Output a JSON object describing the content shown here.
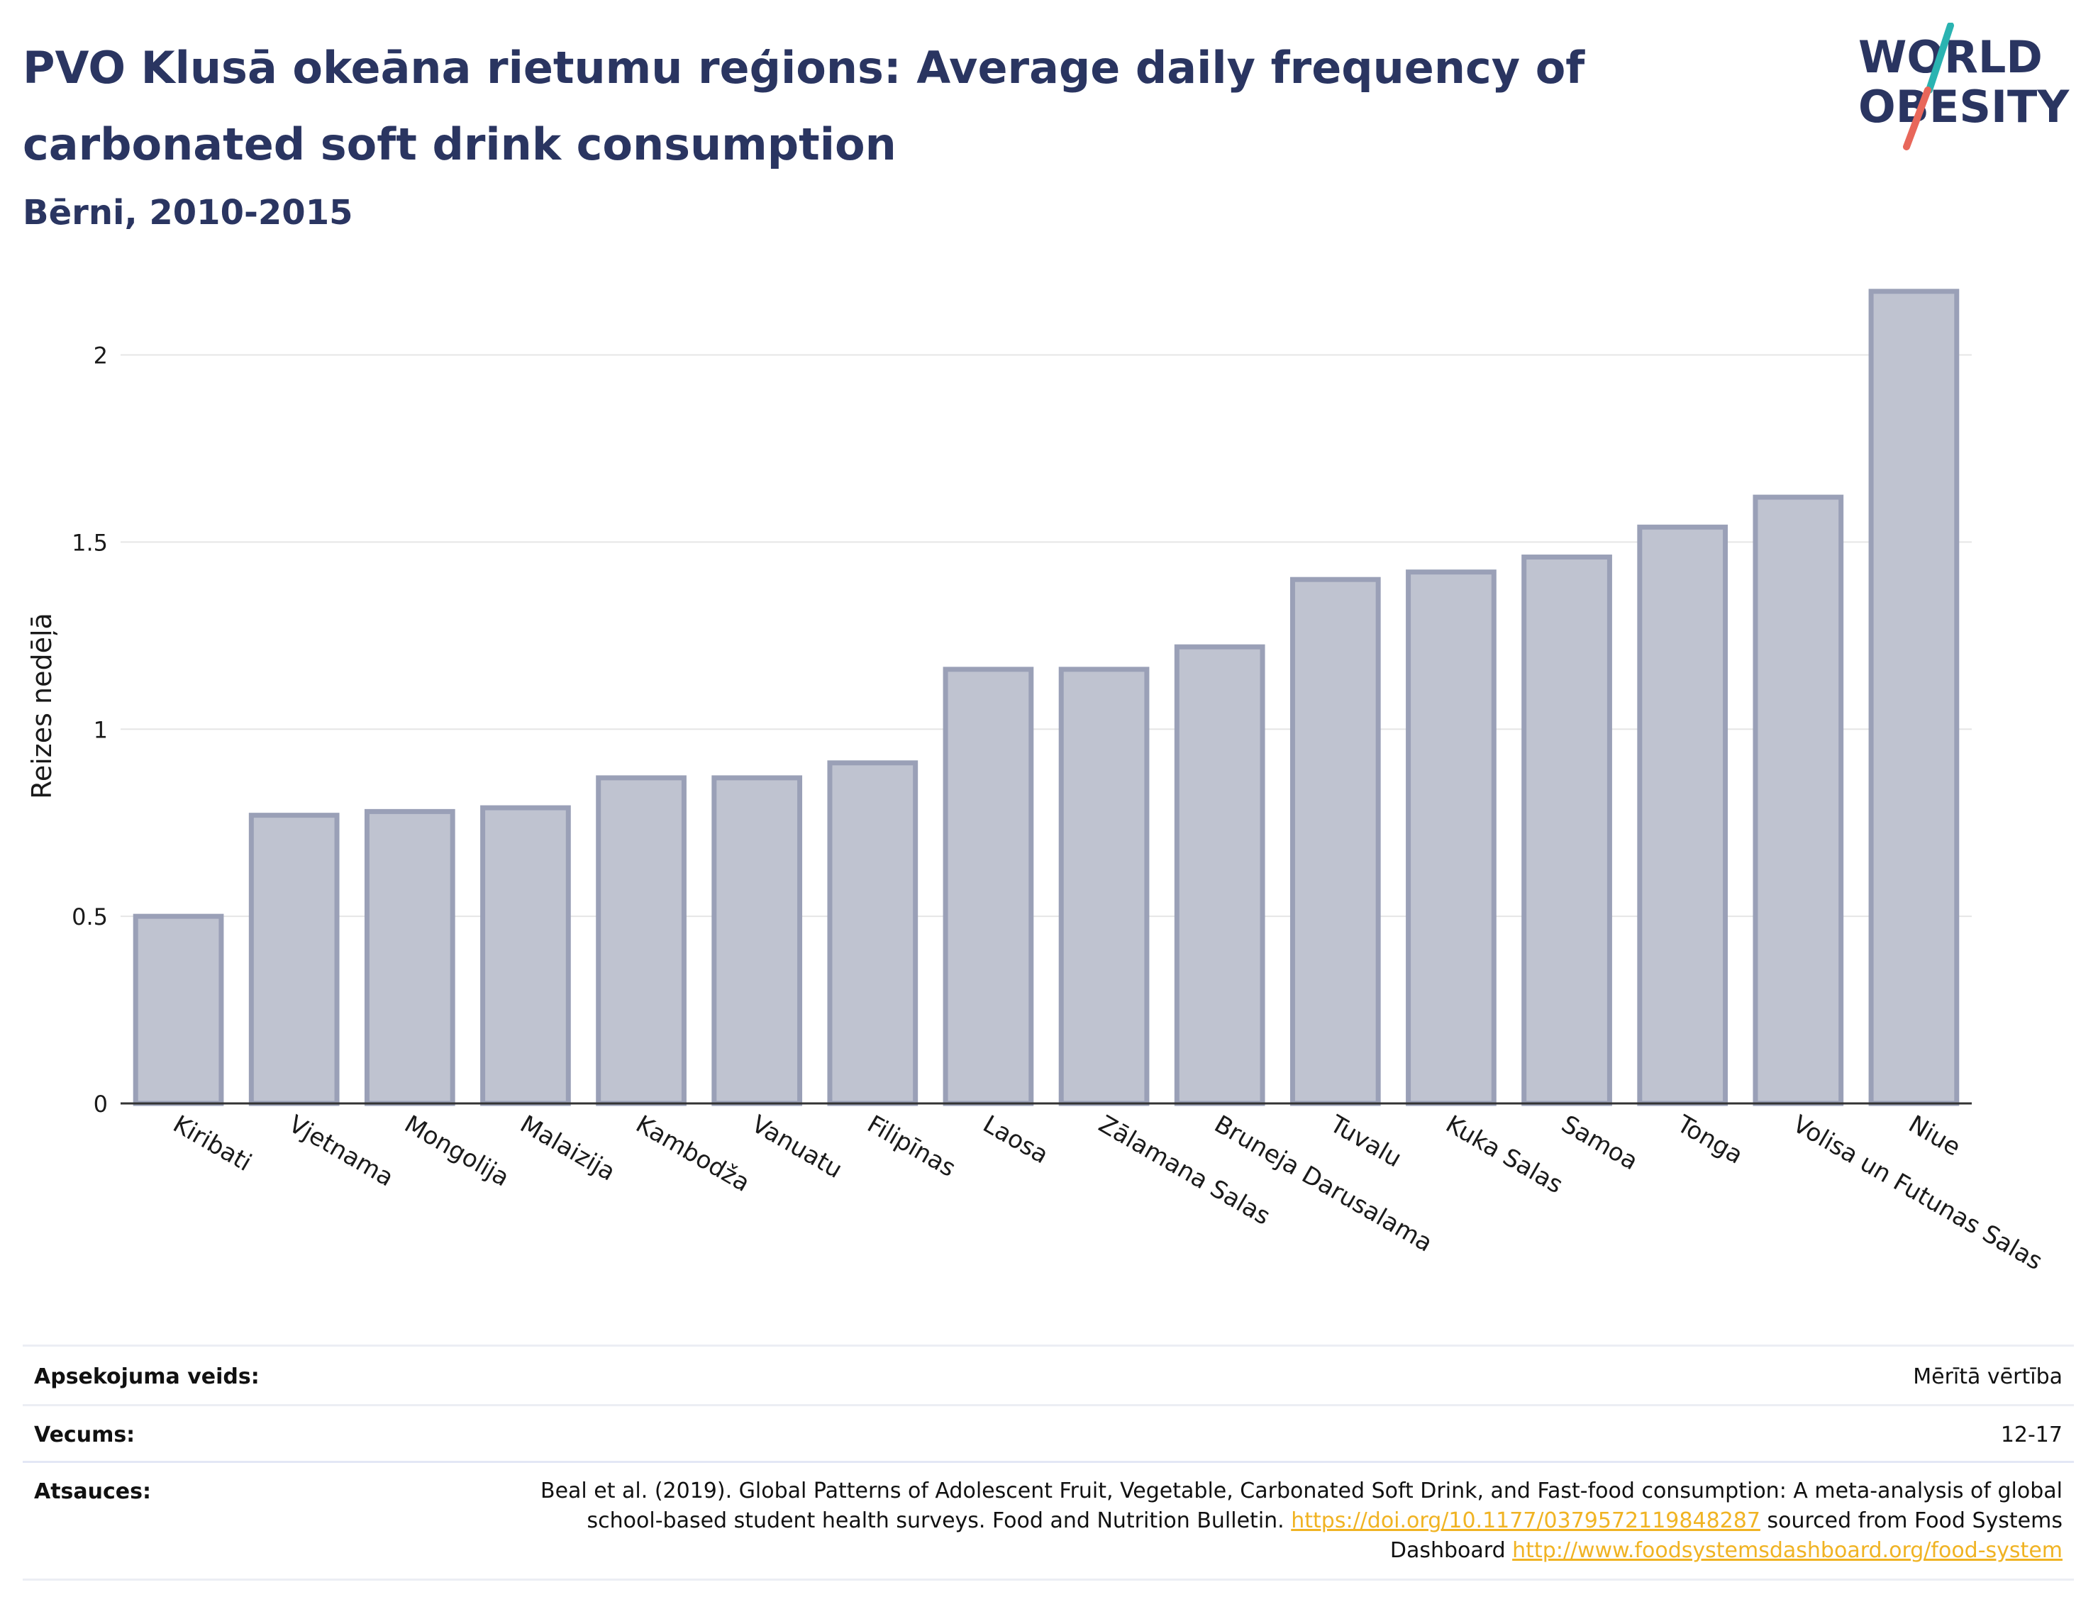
{
  "header": {
    "title": "PVO Klusā okeāna rietumu reģions: Average daily frequency of carbonated soft drink consumption",
    "subtitle": "Bērni, 2010-2015"
  },
  "logo": {
    "line1": "WORLD",
    "line2": "OBESITY",
    "colors": {
      "text": "#2a3561",
      "slash_teal": "#2ab3b1",
      "slash_coral": "#e8675a"
    }
  },
  "chart_data": {
    "type": "bar",
    "categories": [
      "Kiribati",
      "Vjetnama",
      "Mongolija",
      "Malaizija",
      "Kambodža",
      "Vanuatu",
      "Filipīnas",
      "Laosa",
      "Zālamana Salas",
      "Bruneja Darusalama",
      "Tuvalu",
      "Kuka Salas",
      "Samoa",
      "Tonga",
      "Volisa un Futunas Salas",
      "Niue"
    ],
    "values": [
      0.5,
      0.77,
      0.78,
      0.79,
      0.87,
      0.87,
      0.91,
      1.16,
      1.16,
      1.22,
      1.4,
      1.42,
      1.46,
      1.54,
      1.62,
      2.17
    ],
    "xlabel": "",
    "ylabel": "Reizes nedēļā",
    "ylim": [
      0,
      2.2
    ],
    "yticks": [
      0,
      0.5,
      1,
      1.5,
      2
    ],
    "ytick_labels": [
      "0",
      "0.5",
      "1",
      "1.5",
      "2"
    ],
    "grid": true,
    "bar_fill": "#bfc3d0",
    "bar_stroke": "#9aa0b7"
  },
  "meta": {
    "survey_label": "Apsekojuma veids:",
    "survey_value": "Mērītā vērtība",
    "age_label": "Vecums:",
    "age_value": "12-17",
    "sources_label": "Atsauces:",
    "sources_text_1": "Beal et al. (2019). Global Patterns of Adolescent Fruit, Vegetable, Carbonated Soft Drink, and Fast-food consumption: A meta-analysis of global school-based student health surveys. Food and Nutrition Bulletin. ",
    "sources_link_1": "https://doi.org/10.1177/0379572119848287",
    "sources_text_2": " sourced from Food Systems Dashboard ",
    "sources_link_2": "http://www.foodsystemsdashboard.org/food-system"
  }
}
